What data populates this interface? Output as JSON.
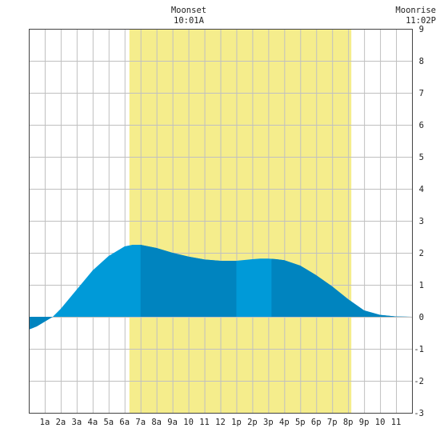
{
  "chart_data": {
    "type": "area",
    "title": "",
    "xlabel": "",
    "ylabel": "",
    "xlim": [
      0,
      24
    ],
    "ylim": [
      -3,
      9
    ],
    "x_tick_labels": [
      "1a",
      "2a",
      "3a",
      "4a",
      "5a",
      "6a",
      "7a",
      "8a",
      "9a",
      "10",
      "11",
      "12",
      "1p",
      "2p",
      "3p",
      "4p",
      "5p",
      "6p",
      "7p",
      "8p",
      "9p",
      "10",
      "11"
    ],
    "y_ticks": [
      -3,
      -2,
      -1,
      0,
      1,
      2,
      3,
      4,
      5,
      6,
      7,
      8,
      9
    ],
    "grid": true,
    "daylight": {
      "start_hour": 6.3,
      "end_hour": 20.2
    },
    "moon_events": [
      {
        "name": "Moonset",
        "time": "10:01A",
        "hour": 10.02
      },
      {
        "name": "Moonrise",
        "time": "11:02P",
        "hour": 23.03
      }
    ],
    "series": [
      {
        "x": [
          0,
          0.5,
          1,
          1.5,
          2,
          3,
          4,
          5,
          6,
          6.5,
          7,
          7.5,
          8,
          9,
          10,
          11,
          12,
          13,
          14,
          14.5,
          15,
          15.5,
          16,
          17,
          18,
          19,
          20,
          21,
          22,
          23,
          24
        ],
        "values": [
          -0.4,
          -0.3,
          -0.15,
          0.0,
          0.25,
          0.85,
          1.45,
          1.9,
          2.2,
          2.25,
          2.25,
          2.2,
          2.15,
          2.0,
          1.88,
          1.79,
          1.75,
          1.75,
          1.8,
          1.82,
          1.82,
          1.8,
          1.77,
          1.6,
          1.3,
          0.95,
          0.55,
          0.2,
          0.06,
          0.01,
          0.0
        ]
      }
    ],
    "shaded_bands": [
      {
        "start_hour": 0,
        "end_hour": 1.5
      },
      {
        "start_hour": 7,
        "end_hour": 13
      },
      {
        "start_hour": 15.2,
        "end_hour": 24
      }
    ],
    "colors": {
      "daylight": "#f5ed8c",
      "tide_light": "#009ad8",
      "tide_dark": "#0084bf",
      "grid": "#c0c0c0",
      "border": "#444444",
      "text": "#222222"
    }
  }
}
